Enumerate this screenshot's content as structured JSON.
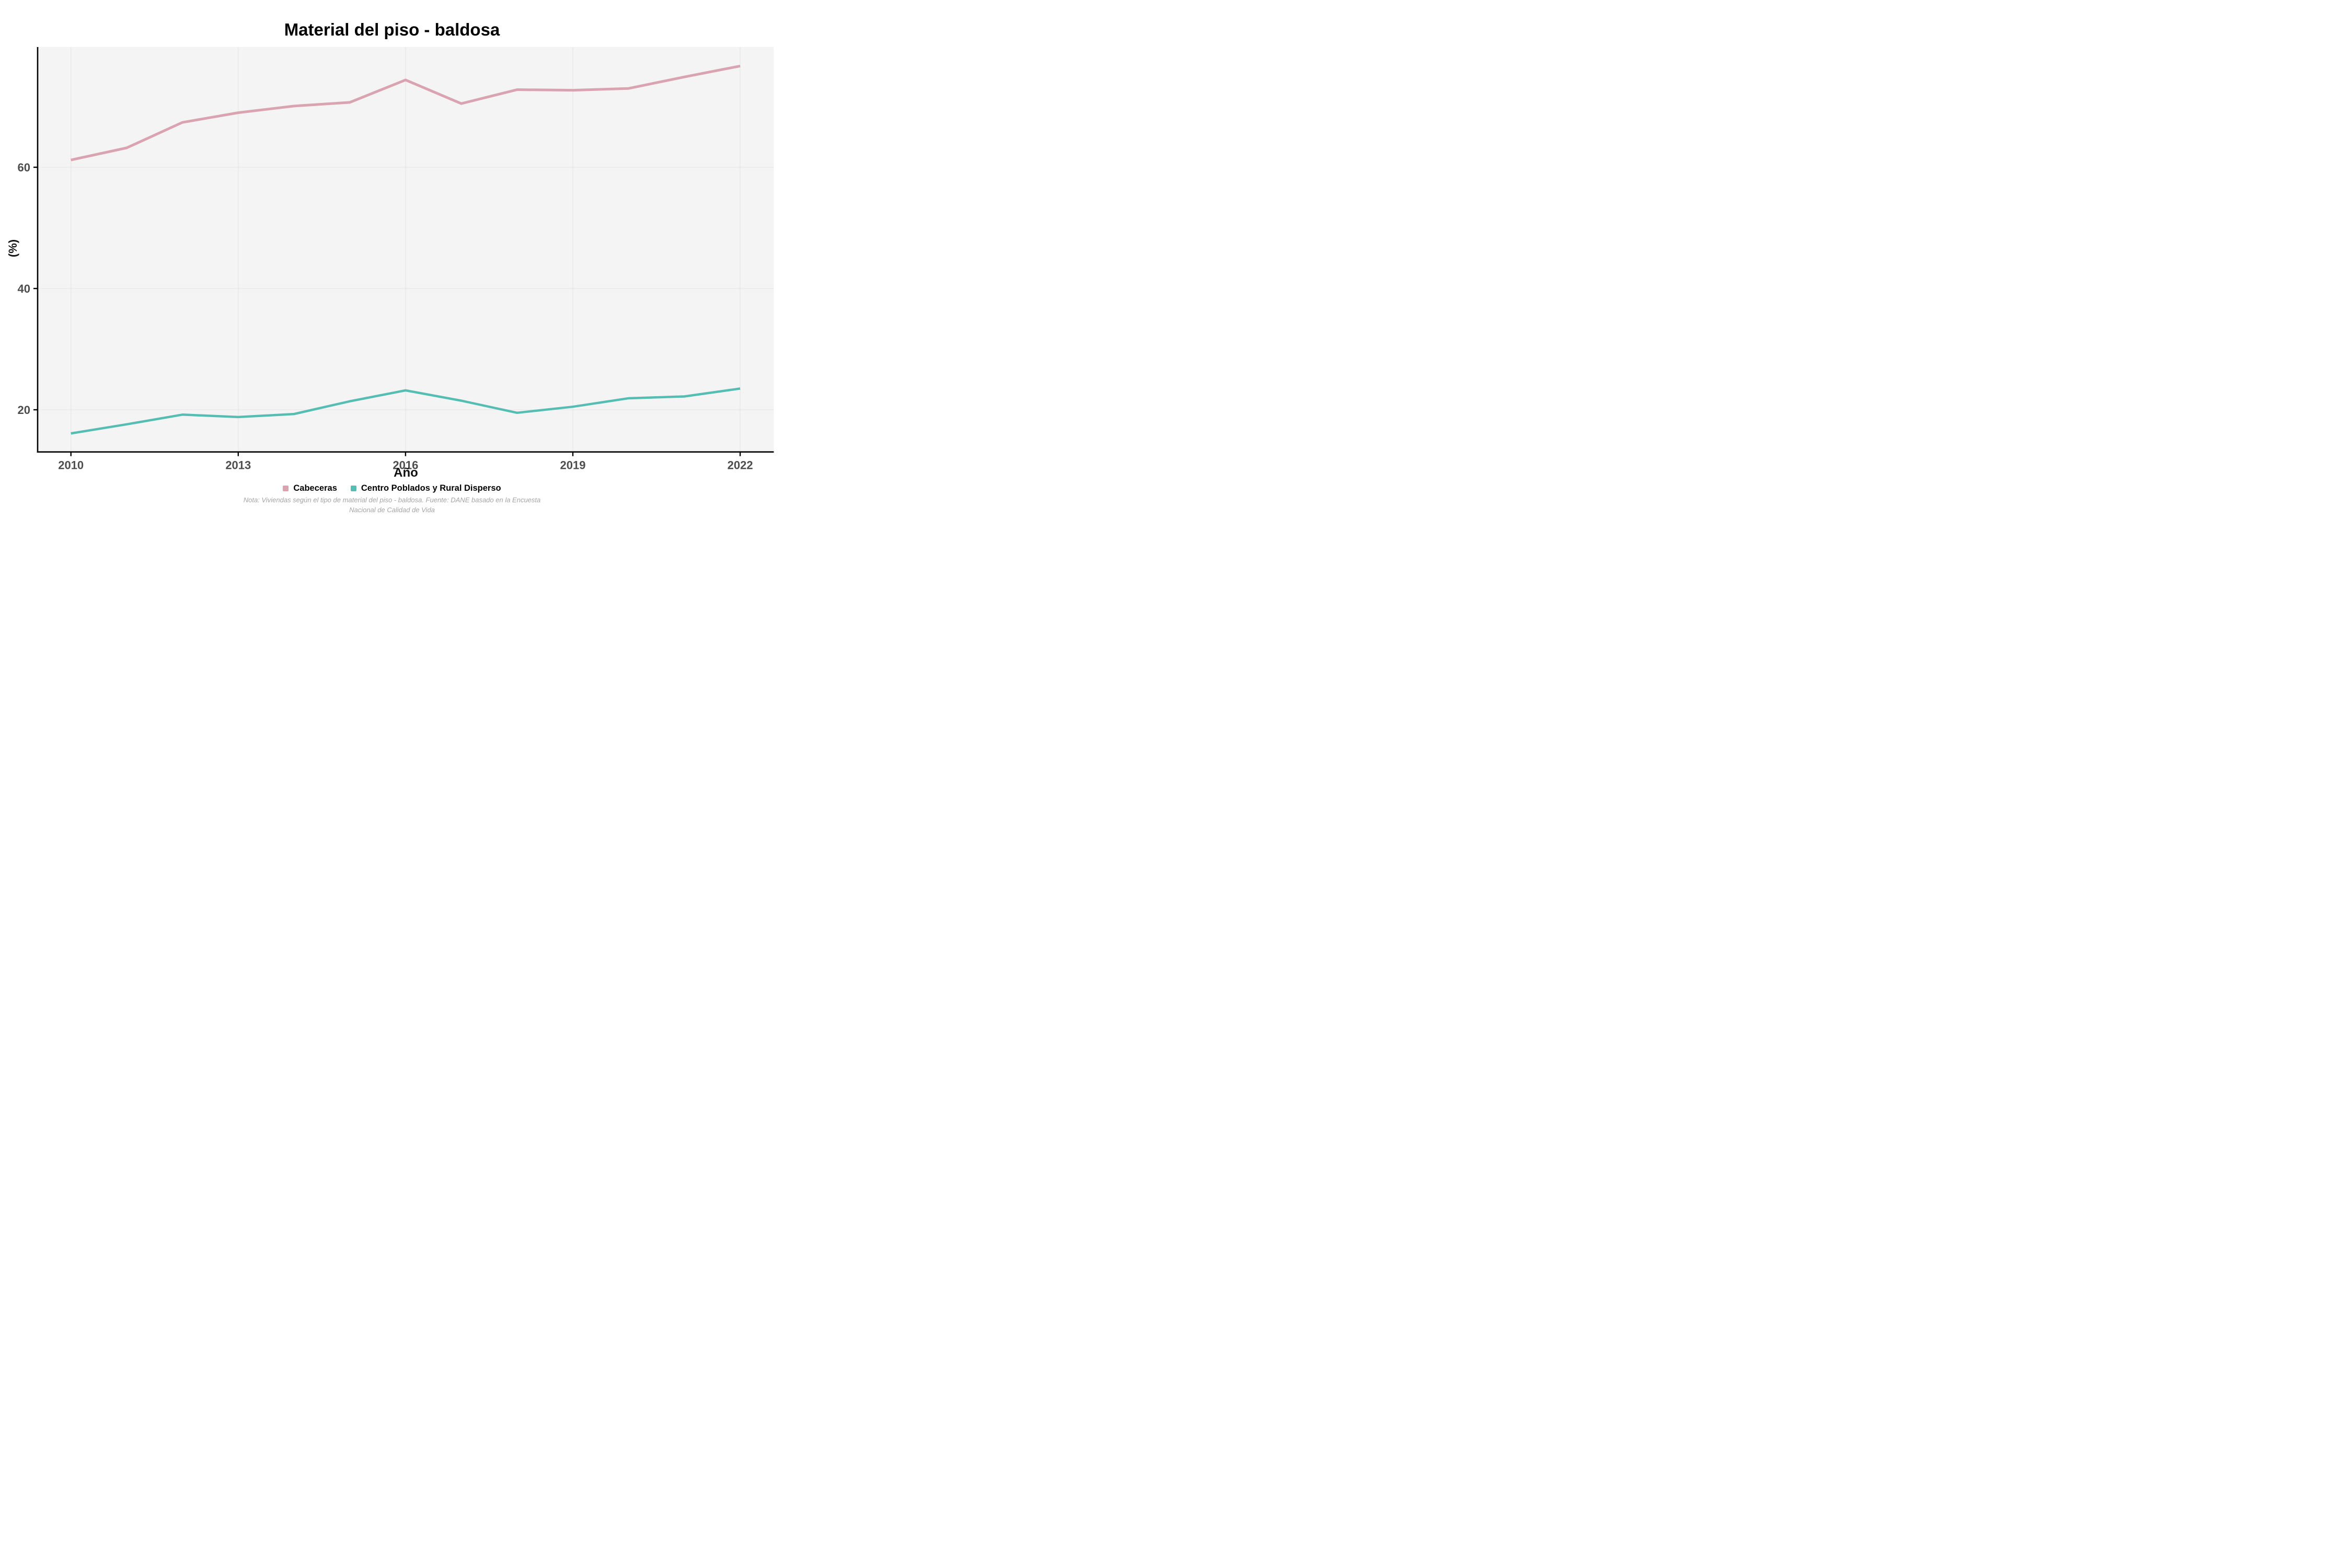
{
  "title": "Material del piso - baldosa",
  "axes": {
    "x_label": "Año",
    "y_label": "(%)",
    "x_ticks": [
      "2010",
      "2013",
      "2016",
      "2019",
      "2022"
    ],
    "y_ticks": [
      "20",
      "40",
      "60"
    ]
  },
  "legend": [
    {
      "label": "Cabeceras",
      "color": "#d9a3b0"
    },
    {
      "label": "Centro Poblados y Rural Disperso",
      "color": "#55bdb2"
    }
  ],
  "footnote": {
    "line1": "Nota: Viviendas según el tipo de material del piso - baldosa. Fuente: DANE basado en la Encuesta",
    "line2": "Nacional de Calidad de Vida"
  },
  "colors": {
    "panel_background": "#f4f4f4",
    "gridline": "#e9e9e9",
    "axis_line": "#000000",
    "tick_label": "#4d4d4d",
    "series_pink": "#d9a3b0",
    "series_teal": "#55bdb2",
    "footnote_text": "#a5a5a5"
  },
  "chart_data": {
    "type": "line",
    "title": "Material del piso - baldosa",
    "xlabel": "Año",
    "ylabel": "(%)",
    "x": [
      2010,
      2011,
      2012,
      2013,
      2014,
      2015,
      2016,
      2017,
      2018,
      2019,
      2020,
      2021,
      2022
    ],
    "series": [
      {
        "name": "Cabeceras",
        "color": "#d9a3b0",
        "values": [
          61.2,
          63.2,
          67.4,
          69.0,
          70.1,
          70.7,
          74.4,
          70.5,
          72.8,
          72.7,
          73.0,
          74.9,
          76.7
        ]
      },
      {
        "name": "Centro Poblados y Rural Disperso",
        "color": "#55bdb2",
        "values": [
          16.1,
          17.6,
          19.2,
          18.8,
          19.3,
          21.4,
          23.2,
          21.5,
          19.5,
          20.5,
          21.9,
          22.2,
          23.5
        ]
      }
    ],
    "ylim": [
      13,
      79.9
    ],
    "x_ticks": [
      2010,
      2013,
      2016,
      2019,
      2022
    ],
    "y_ticks": [
      20,
      40,
      60
    ],
    "grid": "major",
    "legend_position": "bottom"
  }
}
